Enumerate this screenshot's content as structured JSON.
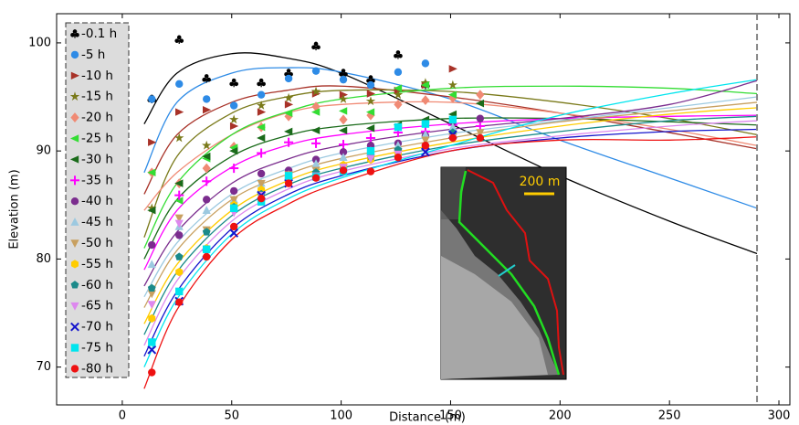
{
  "chart_data": {
    "type": "scatter-fit",
    "x_label": "Distance (m)",
    "y_label": "Elevation (m)",
    "xlim": [
      -30,
      305
    ],
    "ylim": [
      66.5,
      102.7
    ],
    "xticks": [
      0,
      50,
      100,
      150,
      200,
      250,
      300
    ],
    "yticks": [
      70,
      80,
      90,
      100
    ],
    "vline": 290,
    "legend": "left",
    "annotation": "200 m",
    "x": [
      13.5,
      26,
      38.5,
      51,
      63.5,
      76,
      88.5,
      101,
      113.5,
      126,
      138.5,
      151,
      163.5
    ],
    "fit_x": [
      10,
      25,
      50,
      75,
      100,
      150,
      200,
      250,
      290
    ],
    "series": [
      {
        "name": "-0.1 h",
        "color": "#000000",
        "marker": "club",
        "values": [
          94.8,
          100.3,
          96.7,
          96.3,
          96.3,
          97.2,
          99.7,
          97.2,
          96.6,
          98.9,
          96.1,
          null,
          null
        ],
        "fit": [
          92.5,
          97.2,
          99.0,
          98.6,
          97.2,
          92.5,
          87.7,
          83.5,
          80.5
        ]
      },
      {
        "name": "-5 h",
        "color": "#2e8be6",
        "marker": "circle",
        "values": [
          94.8,
          96.2,
          94.8,
          94.2,
          95.2,
          96.7,
          97.4,
          96.6,
          96.1,
          97.3,
          98.1,
          null,
          null
        ],
        "fit": [
          88,
          94.5,
          97.2,
          97.7,
          97.3,
          94.8,
          91,
          87.5,
          84.7
        ]
      },
      {
        "name": "-10 h",
        "color": "#a83228",
        "marker": "tri-right",
        "values": [
          90.8,
          93.6,
          93.8,
          92.3,
          93.6,
          94.3,
          95.3,
          95.2,
          95.3,
          95.6,
          96.1,
          97.6,
          null
        ],
        "fit": [
          86,
          91.5,
          94.5,
          95.6,
          96,
          95,
          93.5,
          91.7,
          90.2
        ]
      },
      {
        "name": "-15 h",
        "color": "#7a7a1a",
        "marker": "star",
        "values": [
          84.7,
          91.2,
          90.5,
          92.9,
          94.2,
          94.9,
          95.5,
          94.8,
          94.6,
          95.2,
          96.3,
          96.1,
          null
        ],
        "fit": [
          82,
          89.5,
          93.5,
          95,
          95.6,
          95.5,
          94.5,
          93,
          91.5
        ]
      },
      {
        "name": "-20 h",
        "color": "#f08a74",
        "marker": "diamond",
        "values": [
          88,
          87,
          88.4,
          90.4,
          92.2,
          93.2,
          94.1,
          92.9,
          93.3,
          94.3,
          94.7,
          94.9,
          95.2
        ],
        "fit": [
          84.5,
          88,
          91.5,
          93.5,
          94.3,
          94.5,
          93.5,
          92,
          90.5
        ]
      },
      {
        "name": "-25 h",
        "color": "#33dd33",
        "marker": "tri-left",
        "values": [
          88,
          85.4,
          89.3,
          90.3,
          92.2,
          93.5,
          93.6,
          93.7,
          93.6,
          95.8,
          96.1,
          95.2,
          null
        ],
        "fit": [
          81,
          87,
          91.5,
          93.6,
          94.8,
          95.8,
          96,
          95.8,
          95.3
        ]
      },
      {
        "name": "-30 h",
        "color": "#1a6b1a",
        "marker": "tri-left",
        "values": [
          84.5,
          87,
          89.5,
          90,
          91.2,
          91.8,
          91.9,
          91.9,
          92.1,
          92.4,
          92.9,
          93.4,
          94.4
        ],
        "fit": [
          80,
          85.5,
          89.5,
          91.4,
          92.3,
          93,
          93,
          92.7,
          92.4
        ]
      },
      {
        "name": "-35 h",
        "color": "#ff00ff",
        "marker": "plus",
        "values": [
          null,
          85.9,
          87.2,
          88.4,
          89.8,
          90.8,
          90.7,
          90.6,
          91.2,
          91.7,
          91.8,
          92.4,
          92.3
        ],
        "fit": [
          79,
          84.5,
          88.5,
          90.5,
          91.5,
          92.5,
          93,
          93.2,
          93.3
        ]
      },
      {
        "name": "-40 h",
        "color": "#7b2d8e",
        "marker": "circle",
        "values": [
          81.3,
          82.2,
          85.5,
          86.3,
          87.9,
          88.2,
          89.2,
          89.9,
          90.5,
          90.7,
          91.4,
          92.7,
          93
        ],
        "fit": [
          77.5,
          82.5,
          87,
          89.2,
          90.5,
          92,
          93,
          94.3,
          96.5
        ]
      },
      {
        "name": "-45 h",
        "color": "#9cc9e0",
        "marker": "tri-up",
        "values": [
          79.5,
          83,
          84.5,
          85.5,
          87,
          87.8,
          88.8,
          89.4,
          90,
          90.5,
          91.5,
          92.2,
          null
        ],
        "fit": [
          76.5,
          81.5,
          86,
          88.3,
          89.8,
          91.6,
          92.8,
          94,
          95
        ]
      },
      {
        "name": "-50 h",
        "color": "#c8a060",
        "marker": "tri-down",
        "values": [
          76.8,
          83.8,
          82.7,
          85.5,
          87,
          87.8,
          88.2,
          88.4,
          89.3,
          89.8,
          91,
          91.3,
          91.7
        ],
        "fit": [
          75.5,
          80.8,
          85.5,
          87.8,
          89.3,
          91.2,
          92.7,
          93.7,
          94.5
        ]
      },
      {
        "name": "-55 h",
        "color": "#ffcc00",
        "marker": "hexagon",
        "values": [
          74.5,
          78.8,
          81,
          85,
          86.4,
          87.7,
          87.8,
          88.7,
          89.2,
          89.8,
          90.4,
          91.6,
          null
        ],
        "fit": [
          74,
          79.5,
          84.5,
          87.2,
          88.8,
          90.8,
          92.3,
          93.4,
          94
        ]
      },
      {
        "name": "-60 h",
        "color": "#1b8a8a",
        "marker": "pentagon",
        "values": [
          77.3,
          80.2,
          82.5,
          84.8,
          86,
          87.3,
          88,
          88.3,
          89.5,
          90.1,
          90.5,
          91.7,
          null
        ],
        "fit": [
          73,
          78.8,
          84,
          86.8,
          88.4,
          90.5,
          91.8,
          92.8,
          93.2
        ]
      },
      {
        "name": "-65 h",
        "color": "#dd88ee",
        "marker": "tri-down",
        "values": [
          75.8,
          83.3,
          80.6,
          84.3,
          85.9,
          87.3,
          87.7,
          88.5,
          89.3,
          89.7,
          90.3,
          91.2,
          null
        ],
        "fit": [
          72,
          78,
          83.5,
          86.4,
          88.1,
          90.2,
          91.4,
          92.3,
          92.8
        ]
      },
      {
        "name": "-70 h",
        "color": "#1515cc",
        "marker": "x",
        "values": [
          71.6,
          76.1,
          80.5,
          82.4,
          85.9,
          87,
          null,
          null,
          null,
          null,
          89.9,
          91.5,
          null
        ],
        "fit": [
          71,
          77,
          82.8,
          85.9,
          87.7,
          90,
          91.2,
          91.8,
          92
        ]
      },
      {
        "name": "-75 h",
        "color": "#00e5ee",
        "marker": "square",
        "values": [
          72.3,
          77,
          80.9,
          84.7,
          85.3,
          87.7,
          87.6,
          88.1,
          90,
          92.2,
          92.5,
          92.9,
          null
        ],
        "fit": [
          70,
          76.3,
          82.3,
          85.5,
          87.5,
          90.5,
          93.3,
          95.3,
          96.6
        ]
      },
      {
        "name": "-80 h",
        "color": "#ee1111",
        "marker": "circle",
        "values": [
          69.5,
          76,
          80.2,
          83,
          85.6,
          87,
          87.5,
          88.2,
          88.1,
          89.4,
          90.5,
          91.2,
          91.2
        ],
        "fit": [
          68,
          75.3,
          81.8,
          85,
          87.1,
          90,
          91,
          91,
          91.3
        ]
      }
    ]
  }
}
